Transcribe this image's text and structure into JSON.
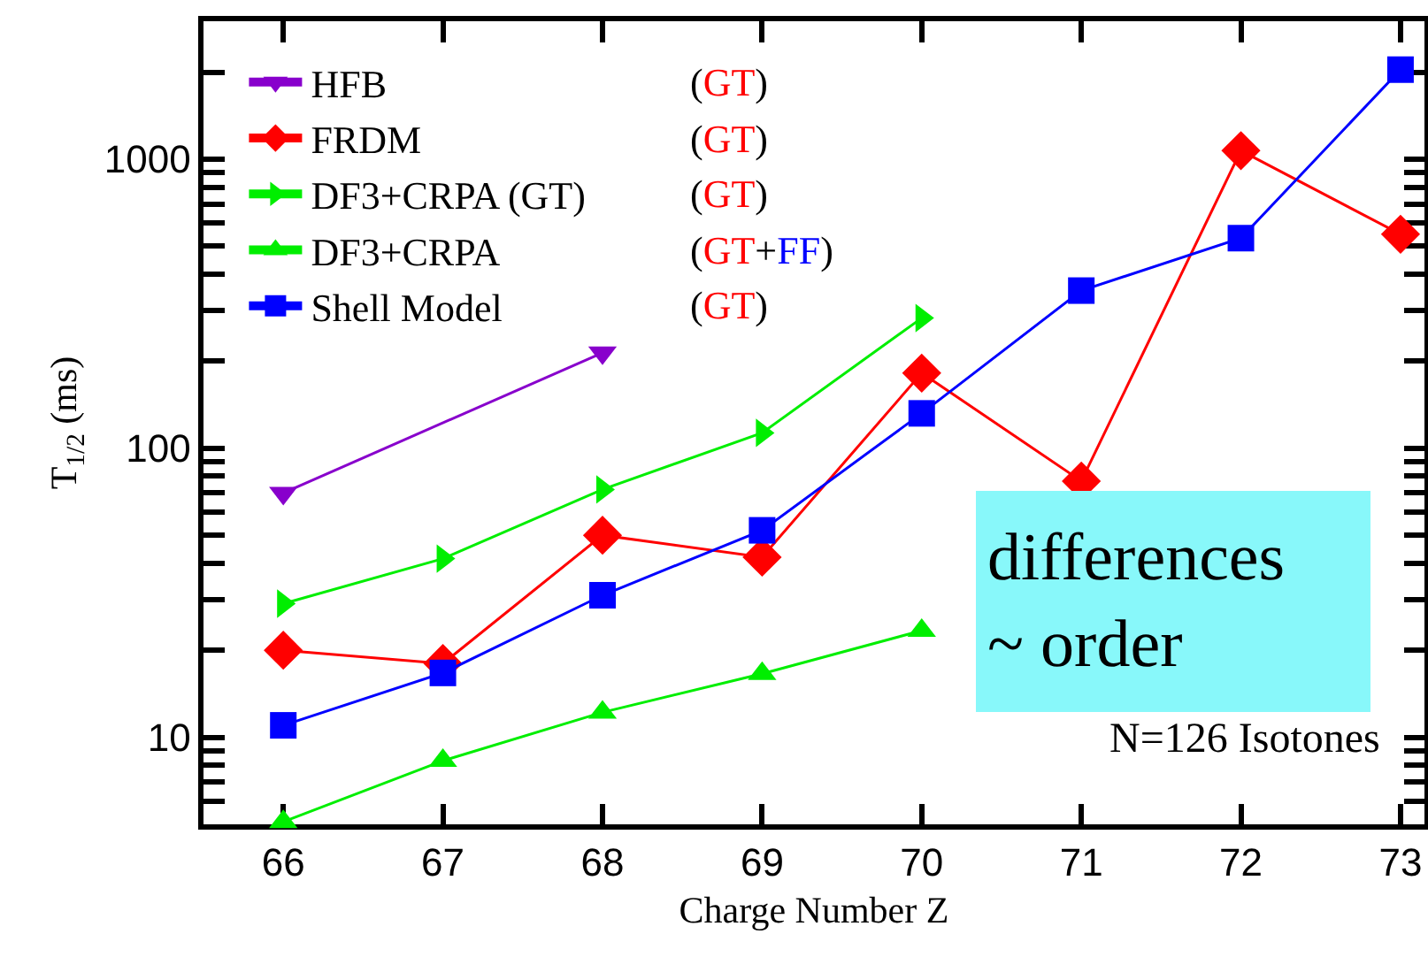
{
  "chart_data": {
    "type": "line",
    "xlabel": "Charge Number Z",
    "ylabel": "T$_{1/2}$ (ms)",
    "log": "y",
    "grid": false,
    "legend": "top left",
    "xlim": [
      65.5,
      73.15
    ],
    "xticks": [
      66,
      67,
      68,
      69,
      70,
      71,
      72,
      73
    ],
    "ylim": [
      5,
      3000
    ],
    "yticks": [
      {
        "value": 5,
        "label": null
      },
      {
        "value": 6,
        "label": null
      },
      {
        "value": 7,
        "label": null
      },
      {
        "value": 8,
        "label": null
      },
      {
        "value": 9,
        "label": null
      },
      10,
      {
        "value": 20,
        "label": null
      },
      {
        "value": 30,
        "label": null
      },
      {
        "value": 40,
        "label": null
      },
      {
        "value": 50,
        "label": null
      },
      {
        "value": 60,
        "label": null
      },
      {
        "value": 70,
        "label": null
      },
      {
        "value": 80,
        "label": null
      },
      {
        "value": 90,
        "label": null
      },
      100,
      {
        "value": 200,
        "label": null
      },
      {
        "value": 300,
        "label": null
      },
      {
        "value": 400,
        "label": null
      },
      {
        "value": 500,
        "label": null
      },
      {
        "value": 600,
        "label": null
      },
      {
        "value": 700,
        "label": null
      },
      {
        "value": 800,
        "label": null
      },
      {
        "value": 900,
        "label": null
      },
      1000,
      {
        "value": 2000,
        "label": null
      }
    ],
    "series": [
      {
        "name": "HFB",
        "color": "#8800cc",
        "marker": "triangle-down",
        "x": [
          66,
          68
        ],
        "values": [
          70,
          214
        ]
      },
      {
        "name": "FRDM",
        "color": "#ff0000",
        "marker": "diamond",
        "x": [
          66,
          67,
          68,
          69,
          70,
          71,
          72,
          73
        ],
        "values": [
          20,
          18,
          50,
          42,
          182,
          77,
          1070,
          550
        ]
      },
      {
        "name": "DF3+CRPA (GT)",
        "color": "#00ee00",
        "marker": "triangle-right",
        "x": [
          66,
          67,
          68,
          69,
          70
        ],
        "values": [
          29,
          41.5,
          72,
          113,
          282
        ]
      },
      {
        "name": "DF3+CRPA",
        "color": "#00ee00",
        "marker": "triangle",
        "x": [
          66,
          67,
          68,
          69,
          70
        ],
        "values": [
          5.1,
          8.3,
          12.2,
          16.6,
          23.4
        ]
      },
      {
        "name": "Shell Model",
        "color": "#0000ff",
        "marker": "square",
        "x": [
          66,
          67,
          68,
          69,
          70,
          71,
          72,
          73
        ],
        "values": [
          11,
          16.7,
          31,
          52,
          132,
          351,
          533,
          2040
        ]
      }
    ],
    "annotations": [
      "(GT)",
      "(GT)",
      "(GT)",
      "(GT+FF)",
      "(GT)",
      "differences\n~ order",
      "N=126 Isotones"
    ]
  }
}
